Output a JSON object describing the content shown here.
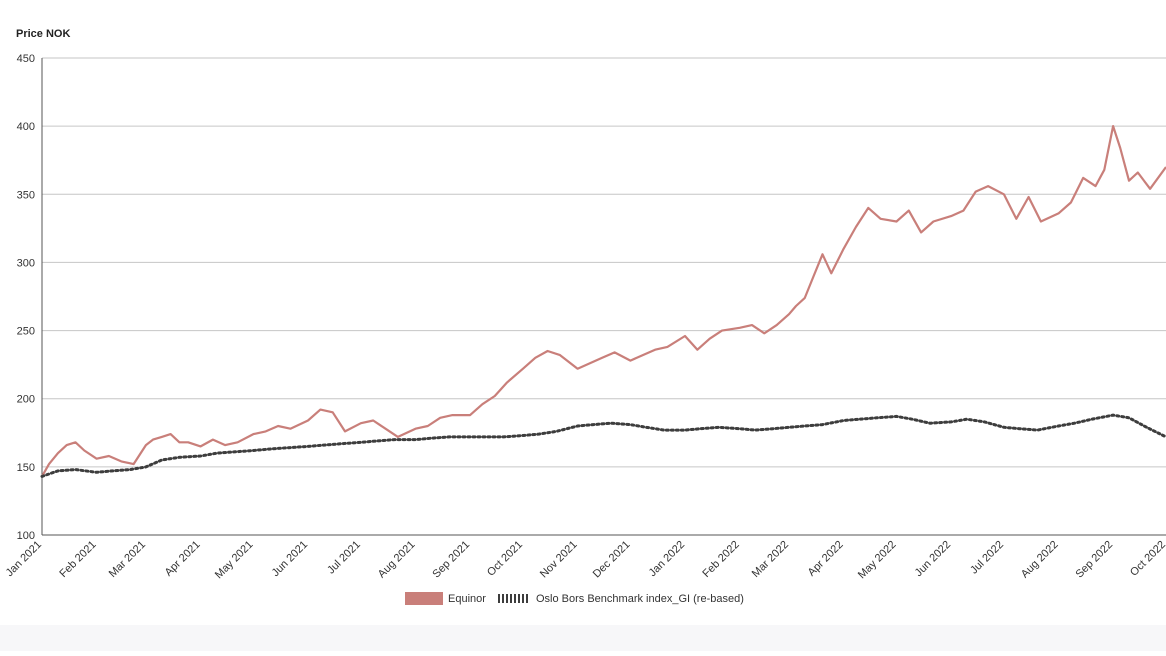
{
  "chart_data": {
    "type": "line",
    "ylabel": "Price NOK",
    "xlabel": "",
    "ylim": [
      100,
      450
    ],
    "yticks": [
      100,
      150,
      200,
      250,
      300,
      350,
      400,
      450
    ],
    "xlim": [
      "2021-01-01",
      "2022-10-01"
    ],
    "xticks": [
      "Jan 2021",
      "Feb 2021",
      "Mar 2021",
      "Apr 2021",
      "May 2021",
      "Jun 2021",
      "Jul 2021",
      "Aug 2021",
      "Sep 2021",
      "Oct 2021",
      "Nov 2021",
      "Dec 2021",
      "Jan 2022",
      "Feb 2022",
      "Mar 2022",
      "Apr 2022",
      "May 2022",
      "Jun 2022",
      "Jul 2022",
      "Aug 2022",
      "Sep 2022",
      "Oct 2022"
    ],
    "grid": "horizontal",
    "legend_position": "bottom",
    "series": [
      {
        "name": "Equinor",
        "color": "#c97f7a",
        "style": "solid",
        "x": [
          "2021-01-01",
          "2021-01-05",
          "2021-01-10",
          "2021-01-15",
          "2021-01-20",
          "2021-01-25",
          "2021-02-01",
          "2021-02-08",
          "2021-02-15",
          "2021-02-22",
          "2021-03-01",
          "2021-03-05",
          "2021-03-10",
          "2021-03-15",
          "2021-03-20",
          "2021-03-25",
          "2021-04-01",
          "2021-04-08",
          "2021-04-15",
          "2021-04-22",
          "2021-05-01",
          "2021-05-08",
          "2021-05-15",
          "2021-05-22",
          "2021-06-01",
          "2021-06-08",
          "2021-06-15",
          "2021-06-22",
          "2021-07-01",
          "2021-07-08",
          "2021-07-15",
          "2021-07-22",
          "2021-08-01",
          "2021-08-08",
          "2021-08-15",
          "2021-08-22",
          "2021-09-01",
          "2021-09-08",
          "2021-09-15",
          "2021-09-22",
          "2021-10-01",
          "2021-10-08",
          "2021-10-15",
          "2021-10-22",
          "2021-11-01",
          "2021-11-08",
          "2021-11-15",
          "2021-11-22",
          "2021-12-01",
          "2021-12-08",
          "2021-12-15",
          "2021-12-22",
          "2022-01-01",
          "2022-01-08",
          "2022-01-15",
          "2022-01-22",
          "2022-02-01",
          "2022-02-08",
          "2022-02-15",
          "2022-02-22",
          "2022-03-01",
          "2022-03-05",
          "2022-03-10",
          "2022-03-15",
          "2022-03-20",
          "2022-03-25",
          "2022-04-01",
          "2022-04-08",
          "2022-04-15",
          "2022-04-22",
          "2022-05-01",
          "2022-05-08",
          "2022-05-15",
          "2022-05-22",
          "2022-06-01",
          "2022-06-08",
          "2022-06-15",
          "2022-06-22",
          "2022-07-01",
          "2022-07-08",
          "2022-07-15",
          "2022-07-22",
          "2022-08-01",
          "2022-08-08",
          "2022-08-15",
          "2022-08-22",
          "2022-08-27",
          "2022-09-01",
          "2022-09-05",
          "2022-09-10",
          "2022-09-15",
          "2022-09-22",
          "2022-10-01"
        ],
        "values": [
          143,
          152,
          160,
          166,
          168,
          162,
          156,
          158,
          154,
          152,
          166,
          170,
          172,
          174,
          168,
          168,
          165,
          170,
          166,
          168,
          174,
          176,
          180,
          178,
          184,
          192,
          190,
          176,
          182,
          184,
          178,
          172,
          178,
          180,
          186,
          188,
          188,
          196,
          202,
          212,
          222,
          230,
          235,
          232,
          222,
          226,
          230,
          234,
          228,
          232,
          236,
          238,
          246,
          236,
          244,
          250,
          252,
          254,
          248,
          254,
          262,
          268,
          274,
          290,
          306,
          292,
          310,
          326,
          340,
          332,
          330,
          338,
          322,
          330,
          334,
          338,
          352,
          356,
          350,
          332,
          348,
          330,
          336,
          344,
          362,
          356,
          368,
          400,
          384,
          360,
          366,
          354,
          370
        ]
      },
      {
        "name": "Oslo Bors Benchmark index_GI (re-based)",
        "color": "#3d3d3d",
        "style": "dotted",
        "x": [
          "2021-01-01",
          "2021-01-10",
          "2021-01-20",
          "2021-02-01",
          "2021-02-10",
          "2021-02-20",
          "2021-03-01",
          "2021-03-10",
          "2021-03-20",
          "2021-04-01",
          "2021-04-10",
          "2021-04-20",
          "2021-05-01",
          "2021-05-10",
          "2021-05-20",
          "2021-06-01",
          "2021-06-10",
          "2021-06-20",
          "2021-07-01",
          "2021-07-10",
          "2021-07-20",
          "2021-08-01",
          "2021-08-10",
          "2021-08-20",
          "2021-09-01",
          "2021-09-10",
          "2021-09-20",
          "2021-10-01",
          "2021-10-10",
          "2021-10-20",
          "2021-11-01",
          "2021-11-10",
          "2021-11-20",
          "2021-12-01",
          "2021-12-10",
          "2021-12-20",
          "2022-01-01",
          "2022-01-10",
          "2022-01-20",
          "2022-02-01",
          "2022-02-10",
          "2022-02-20",
          "2022-03-01",
          "2022-03-10",
          "2022-03-20",
          "2022-04-01",
          "2022-04-10",
          "2022-04-20",
          "2022-05-01",
          "2022-05-10",
          "2022-05-20",
          "2022-06-01",
          "2022-06-10",
          "2022-06-20",
          "2022-07-01",
          "2022-07-10",
          "2022-07-20",
          "2022-08-01",
          "2022-08-10",
          "2022-08-20",
          "2022-09-01",
          "2022-09-10",
          "2022-09-20",
          "2022-10-01"
        ],
        "values": [
          143,
          147,
          148,
          146,
          147,
          148,
          150,
          155,
          157,
          158,
          160,
          161,
          162,
          163,
          164,
          165,
          166,
          167,
          168,
          169,
          170,
          170,
          171,
          172,
          172,
          172,
          172,
          173,
          174,
          176,
          180,
          181,
          182,
          181,
          179,
          177,
          177,
          178,
          179,
          178,
          177,
          178,
          179,
          180,
          181,
          184,
          185,
          186,
          187,
          185,
          182,
          183,
          185,
          183,
          179,
          178,
          177,
          180,
          182,
          185,
          188,
          186,
          179,
          172
        ]
      }
    ]
  }
}
